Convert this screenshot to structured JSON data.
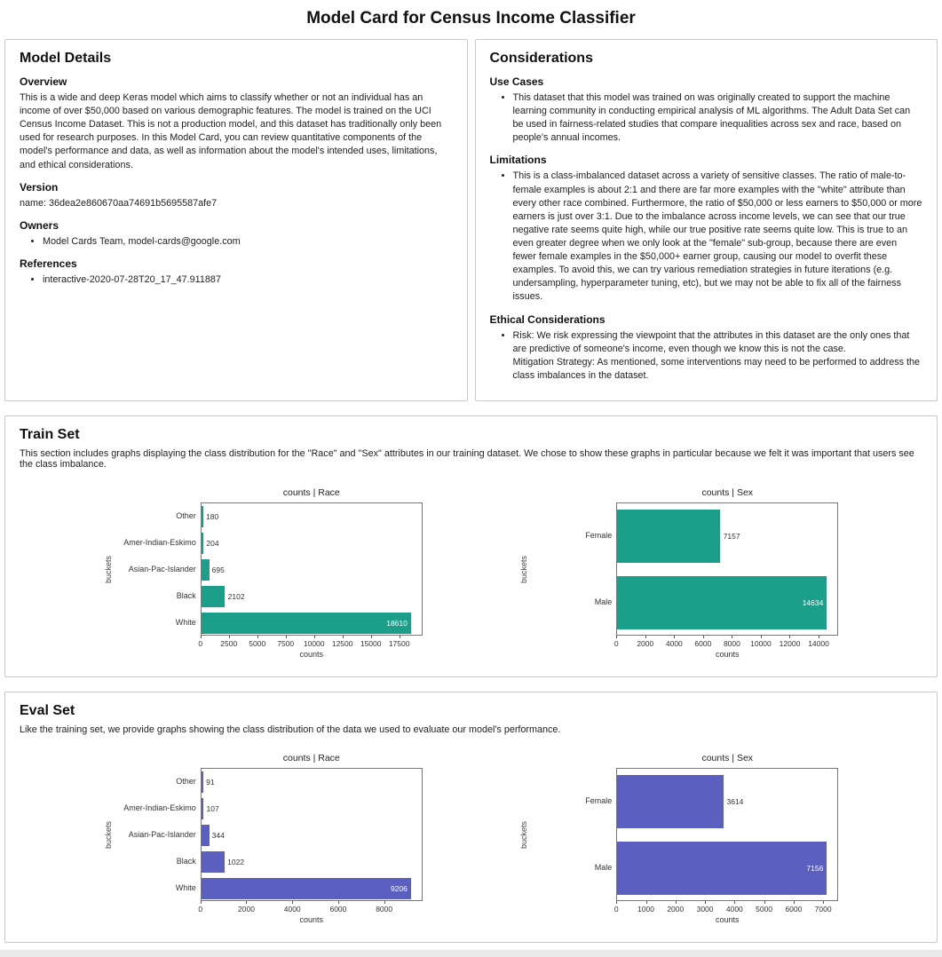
{
  "page": {
    "title": "Model Card for Census Income Classifier"
  },
  "model_details": {
    "title": "Model Details",
    "overview": {
      "heading": "Overview",
      "body": "This is a wide and deep Keras model which aims to classify whether or not an individual has an income of over $50,000 based on various demographic features. The model is trained on the UCI Census Income Dataset. This is not a production model, and this dataset has traditionally only been used for research purposes. In this Model Card, you can review quantitative components of the model's performance and data, as well as information about the model's intended uses, limitations, and ethical considerations."
    },
    "version": {
      "heading": "Version",
      "body": "name: 36dea2e860670aa74691b5695587afe7"
    },
    "owners": {
      "heading": "Owners",
      "items": [
        "Model Cards Team, model-cards@google.com"
      ]
    },
    "references": {
      "heading": "References",
      "items": [
        "interactive-2020-07-28T20_17_47.911887"
      ]
    }
  },
  "considerations": {
    "title": "Considerations",
    "use_cases": {
      "heading": "Use Cases",
      "items": [
        "This dataset that this model was trained on was originally created to support the machine learning community in conducting empirical analysis of ML algorithms. The Adult Data Set can be used in fairness-related studies that compare inequalities across sex and race, based on people's annual incomes."
      ]
    },
    "limitations": {
      "heading": "Limitations",
      "items": [
        "This is a class-imbalanced dataset across a variety of sensitive classes. The ratio of male-to-female examples is about 2:1 and there are far more examples with the \"white\" attribute than every other race combined. Furthermore, the ratio of $50,000 or less earners to $50,000 or more earners is just over 3:1. Due to the imbalance across income levels, we can see that our true negative rate seems quite high, while our true positive rate seems quite low. This is true to an even greater degree when we only look at the \"female\" sub-group, because there are even fewer female examples in the $50,000+ earner group, causing our model to overfit these examples. To avoid this, we can try various remediation strategies in future iterations (e.g. undersampling, hyperparameter tuning, etc), but we may not be able to fix all of the fairness issues."
      ]
    },
    "ethical_considerations": {
      "heading": "Ethical Considerations",
      "items": [
        "Risk: We risk expressing the viewpoint that the attributes in this dataset are the only ones that are predictive of someone's income, even though we know this is not the case.\nMitigation Strategy: As mentioned, some interventions may need to be performed to address the class imbalances in the dataset."
      ]
    }
  },
  "train_set": {
    "title": "Train Set",
    "description": "This section includes graphs displaying the class distribution for the \"Race\" and \"Sex\" attributes in our training dataset. We chose to show these graphs in particular because we felt it was important that users see the class imbalance."
  },
  "eval_set": {
    "title": "Eval Set",
    "description": "Like the training set, we provide graphs showing the class distribution of the data we used to evaluate our model's performance."
  },
  "colors": {
    "train_bar": "#1b9e8a",
    "eval_bar": "#5a5fc0"
  },
  "chart_data": [
    {
      "type": "bar",
      "orientation": "horizontal",
      "section": "train",
      "title": "counts | Race",
      "xlabel": "counts",
      "ylabel": "buckets",
      "categories": [
        "Other",
        "Amer-Indian-Eskimo",
        "Asian-Pac-Islander",
        "Black",
        "White"
      ],
      "values": [
        180,
        204,
        695,
        2102,
        18610
      ],
      "xticks": [
        0,
        2500,
        5000,
        7500,
        10000,
        12500,
        15000,
        17500
      ],
      "xlim": [
        0,
        19540
      ],
      "grid": false,
      "legend": false,
      "color": "#1b9e8a"
    },
    {
      "type": "bar",
      "orientation": "horizontal",
      "section": "train",
      "title": "counts | Sex",
      "xlabel": "counts",
      "ylabel": "buckets",
      "categories": [
        "Female",
        "Male"
      ],
      "values": [
        7157,
        14634
      ],
      "xticks": [
        0,
        2000,
        4000,
        6000,
        8000,
        10000,
        12000,
        14000
      ],
      "xlim": [
        0,
        15366
      ],
      "grid": false,
      "legend": false,
      "color": "#1b9e8a"
    },
    {
      "type": "bar",
      "orientation": "horizontal",
      "section": "eval",
      "title": "counts | Race",
      "xlabel": "counts",
      "ylabel": "buckets",
      "categories": [
        "Other",
        "Amer-Indian-Eskimo",
        "Asian-Pac-Islander",
        "Black",
        "White"
      ],
      "values": [
        91,
        107,
        344,
        1022,
        9206
      ],
      "xticks": [
        0,
        2000,
        4000,
        6000,
        8000
      ],
      "xlim": [
        0,
        9666
      ],
      "grid": false,
      "legend": false,
      "color": "#5a5fc0"
    },
    {
      "type": "bar",
      "orientation": "horizontal",
      "section": "eval",
      "title": "counts | Sex",
      "xlabel": "counts",
      "ylabel": "buckets",
      "categories": [
        "Female",
        "Male"
      ],
      "values": [
        3614,
        7156
      ],
      "xticks": [
        0,
        1000,
        2000,
        3000,
        4000,
        5000,
        6000,
        7000
      ],
      "xlim": [
        0,
        7514
      ],
      "grid": false,
      "legend": false,
      "color": "#5a5fc0"
    }
  ]
}
